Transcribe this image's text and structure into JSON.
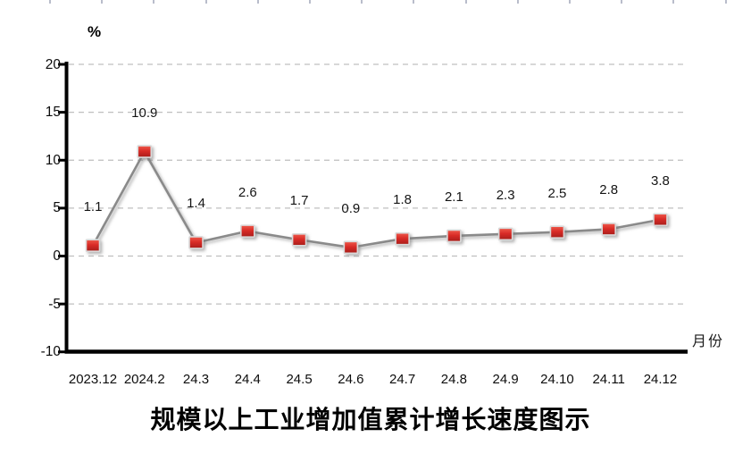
{
  "chart": {
    "percent_label": "%",
    "x_axis_unit": "月份",
    "title": "规模以上工业增加值累计增长速度图示"
  },
  "chart_data": {
    "type": "line",
    "categories": [
      "2023.12",
      "2024.2",
      "24.3",
      "24.4",
      "24.5",
      "24.6",
      "24.7",
      "24.8",
      "24.9",
      "24.10",
      "24.11",
      "24.12"
    ],
    "values": [
      1.1,
      10.9,
      1.4,
      2.6,
      1.7,
      0.9,
      1.8,
      2.1,
      2.3,
      2.5,
      2.8,
      3.8
    ],
    "title": "规模以上工业增加值累计增长速度图示",
    "xlabel": "月份",
    "ylabel": "%",
    "ylim": [
      -10,
      20
    ],
    "ytick_step": 5,
    "grid": "horizontal-dashed",
    "legend": "none",
    "marker": "square",
    "data_labels": "above",
    "colors": {
      "marker_top": "#ef5a4c",
      "marker_mid": "#d92c27",
      "marker_bottom": "#a81d1b",
      "marker_border": "#d9d9d9",
      "line": "#8a8a8a",
      "grid": "#bfbfbf",
      "axis": "#000000",
      "ruler_tick": "#b9bdcb"
    }
  }
}
